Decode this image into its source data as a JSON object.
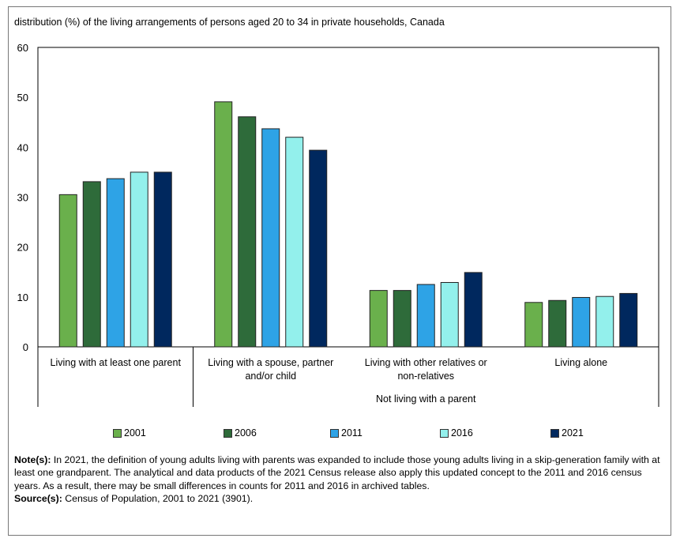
{
  "title": "distribution (%) of the living arrangements of persons aged 20 to 34 in private households, Canada",
  "chart_data": {
    "type": "bar",
    "title": "distribution (%) of the living arrangements of persons aged 20 to 34 in private households, Canada",
    "categories": [
      "Living with at least one parent",
      "Living with a spouse, partner and/or child",
      "Living with other relatives or non-relatives",
      "Living alone"
    ],
    "category_lines": [
      [
        "Living with at least one parent"
      ],
      [
        "Living with a spouse, partner",
        "and/or child"
      ],
      [
        "Living with other relatives or",
        "non-relatives"
      ],
      [
        "Living alone"
      ]
    ],
    "group_label": "Not living with a parent",
    "ylim": [
      0,
      60
    ],
    "yticks": [
      "0",
      "10",
      "20",
      "30",
      "40",
      "50",
      "60"
    ],
    "xlabel": "",
    "ylabel": "",
    "legend_position": "bottom",
    "series": [
      {
        "name": "2001",
        "color": "#6ab04c",
        "values": [
          30.5,
          49.1,
          11.3,
          8.9
        ]
      },
      {
        "name": "2006",
        "color": "#2e6b3a",
        "values": [
          33.1,
          46.1,
          11.3,
          9.3
        ]
      },
      {
        "name": "2011",
        "color": "#2ea3e6",
        "values": [
          33.7,
          43.7,
          12.5,
          9.9
        ]
      },
      {
        "name": "2016",
        "color": "#93f0ec",
        "values": [
          35.0,
          42.0,
          12.9,
          10.1
        ]
      },
      {
        "name": "2021",
        "color": "#00285e",
        "values": [
          35.0,
          39.4,
          14.9,
          10.7
        ]
      }
    ]
  },
  "notes": {
    "note_label": "Note(s):",
    "note_text": " In 2021, the definition of young adults living with parents was expanded to include those young adults living in a skip-generation family with at least one grandparent. The analytical and data products of the 2021 Census release also apply this updated concept to the 2011 and 2016 census years. As a result, there may be small differences in counts for 2011 and 2016 in archived tables.",
    "source_label": "Source(s):",
    "source_text": " Census of Population, 2001 to 2021 (3901)."
  }
}
